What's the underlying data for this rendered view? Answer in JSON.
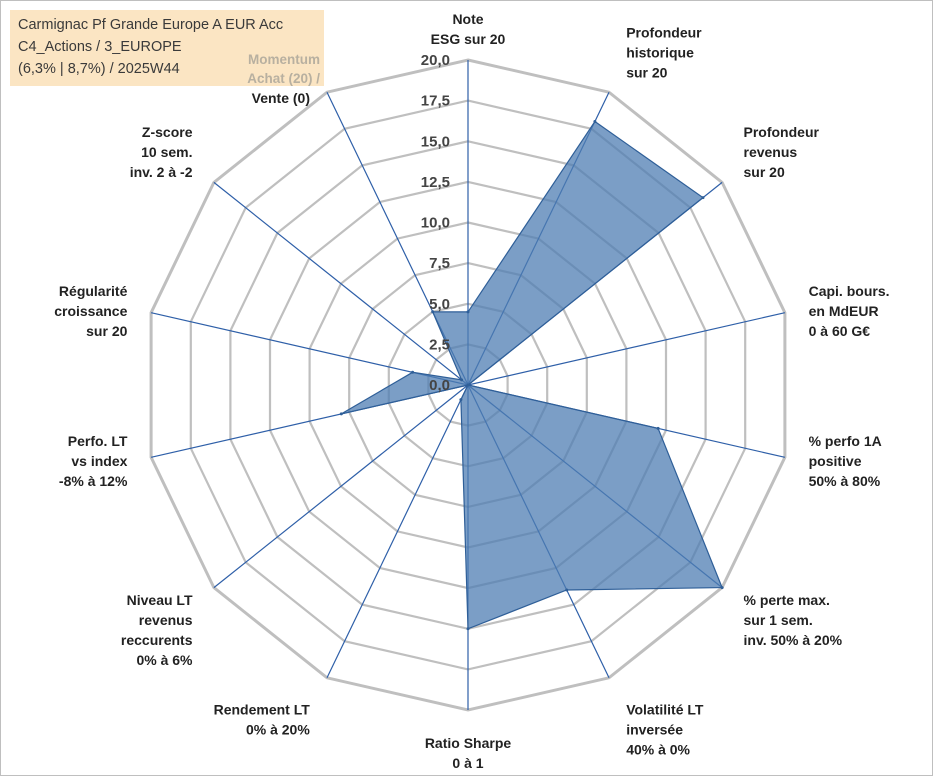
{
  "header": {
    "line1": "Carmignac Pf Grande Europe A EUR Acc",
    "line2": "C4_Actions / 3_EUROPE",
    "line3": "(6,3% | 8,7%) / 2025W44",
    "momentum_1": "Momentum",
    "momentum_2": "Achat (20) /",
    "vente": "Vente (0)"
  },
  "colors": {
    "fill": "#4f7db3",
    "fill_stroke": "#2f5f98",
    "grid": "#bfbfbf",
    "spoke": "#2e5fa8",
    "title_bg": "#fbe5c3"
  },
  "chart_data": {
    "type": "radar",
    "title": "Carmignac Pf Grande Europe A EUR Acc",
    "rmin": 0,
    "rmax": 20,
    "tick_step": 2.5,
    "tick_labels": [
      "0,0",
      "2,5",
      "5,0",
      "7,5",
      "10,0",
      "12,5",
      "15,0",
      "17,5",
      "20,0"
    ],
    "axes": [
      {
        "label": [
          "Note",
          "ESG sur 20"
        ],
        "value": 4.5
      },
      {
        "label": [
          "Profondeur",
          "historique",
          "sur 20"
        ],
        "value": 18.0
      },
      {
        "label": [
          "Profondeur",
          "revenus",
          "sur 20"
        ],
        "value": 18.5
      },
      {
        "label": [
          "Capi. bours.",
          "en MdEUR",
          "0 à 60 G€"
        ],
        "value": 0.0
      },
      {
        "label": [
          "% perfo 1A",
          "positive",
          "50% à 80%"
        ],
        "value": 12.0
      },
      {
        "label": [
          "% perte max.",
          "sur 1 sem.",
          "inv. 50% à 20%"
        ],
        "value": 20.0
      },
      {
        "label": [
          "Volatilité LT",
          "inversée",
          "40% à 0%"
        ],
        "value": 14.0
      },
      {
        "label": [
          "Ratio Sharpe",
          "0 à 1"
        ],
        "value": 15.0
      },
      {
        "label": [
          "Rendement LT",
          "0% à 20%"
        ],
        "value": 1.0
      },
      {
        "label": [
          "Niveau LT",
          "revenus",
          "reccurents",
          "0% à 6%"
        ],
        "value": 0.0
      },
      {
        "label": [
          "Perfo. LT",
          "vs index",
          "-8% à 12%"
        ],
        "value": 8.0
      },
      {
        "label": [
          "Régularité",
          "croissance",
          "sur 20"
        ],
        "value": 3.5
      },
      {
        "label": [
          "Z-score",
          "10 sem.",
          "inv. 2 à -2"
        ],
        "value": 0.5
      },
      {
        "label": [
          "Momentum",
          "Achat (20) /",
          "Vente (0)"
        ],
        "value": 5.0
      }
    ]
  }
}
